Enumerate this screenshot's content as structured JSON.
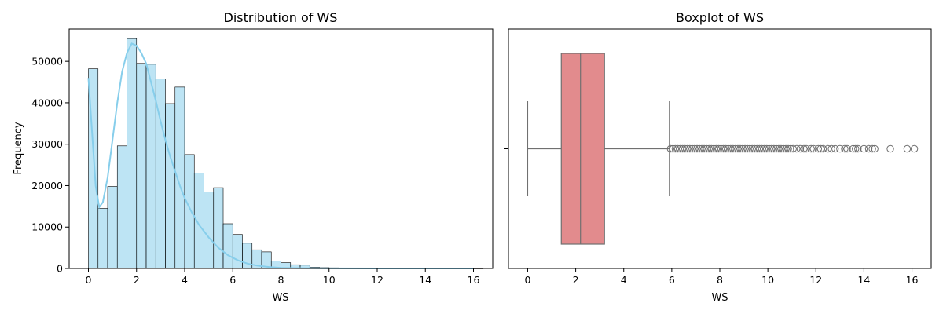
{
  "chart_data": [
    {
      "type": "histogram",
      "title": "Distribution of WS",
      "xlabel": "WS",
      "ylabel": "Frequency",
      "xlim": [
        -0.8,
        16.8
      ],
      "ylim": [
        0,
        57800
      ],
      "xticks": [
        0,
        2,
        4,
        6,
        8,
        10,
        12,
        14,
        16
      ],
      "yticks": [
        0,
        10000,
        20000,
        30000,
        40000,
        50000
      ],
      "bin_width": 0.4,
      "bin_start": 0,
      "bin_values": [
        48200,
        14500,
        19800,
        29600,
        55500,
        49500,
        49300,
        45800,
        39800,
        43800,
        27500,
        23000,
        18500,
        19500,
        10800,
        8200,
        6100,
        4500,
        4000,
        1800,
        1400,
        900,
        800,
        300,
        200,
        150,
        100,
        100,
        80,
        60,
        50,
        40,
        30,
        30,
        20,
        20,
        20,
        15,
        15,
        10,
        10
      ],
      "bar_color": "#87ceeb",
      "kde_color": "#87ceeb",
      "kde": {
        "x": [
          0,
          0.15,
          0.3,
          0.45,
          0.6,
          0.8,
          1.0,
          1.2,
          1.4,
          1.6,
          1.8,
          2.0,
          2.2,
          2.4,
          2.6,
          2.8,
          3.0,
          3.2,
          3.4,
          3.6,
          3.8,
          4.0,
          4.3,
          4.6,
          5.0,
          5.4,
          5.8,
          6.2,
          6.6,
          7.0,
          7.5,
          8.0,
          9.0,
          10,
          12,
          14,
          16
        ],
        "y": [
          46000,
          33000,
          20000,
          14800,
          16000,
          22000,
          31000,
          40000,
          47500,
          52000,
          54300,
          53800,
          52000,
          49500,
          45000,
          40500,
          35500,
          31000,
          27000,
          23500,
          20000,
          17000,
          13500,
          10500,
          7500,
          5000,
          3200,
          2000,
          1200,
          700,
          350,
          150,
          60,
          20,
          5,
          2,
          1
        ]
      }
    },
    {
      "type": "boxplot",
      "title": "Boxplot of WS",
      "xlabel": "WS",
      "xlim": [
        -0.8,
        16.8
      ],
      "xticks": [
        0,
        2,
        4,
        6,
        8,
        10,
        12,
        14,
        16
      ],
      "whisker_low": 0,
      "q1": 1.4,
      "median": 2.2,
      "q3": 3.2,
      "whisker_high": 5.9,
      "box_color": "#e28b8d",
      "line_color": "#707070",
      "outliers": [
        5.95,
        6.05,
        6.15,
        6.25,
        6.35,
        6.45,
        6.55,
        6.65,
        6.75,
        6.85,
        6.95,
        7.05,
        7.15,
        7.25,
        7.35,
        7.45,
        7.55,
        7.65,
        7.75,
        7.85,
        7.95,
        8.05,
        8.15,
        8.25,
        8.35,
        8.45,
        8.55,
        8.65,
        8.75,
        8.85,
        8.95,
        9.05,
        9.15,
        9.25,
        9.35,
        9.45,
        9.55,
        9.65,
        9.75,
        9.85,
        9.95,
        10.05,
        10.15,
        10.25,
        10.35,
        10.45,
        10.55,
        10.65,
        10.75,
        10.85,
        10.95,
        11.05,
        11.2,
        11.35,
        11.5,
        11.6,
        11.8,
        11.9,
        12.1,
        12.2,
        12.3,
        12.5,
        12.65,
        12.8,
        13.0,
        13.2,
        13.3,
        13.55,
        13.65,
        13.75,
        14.0,
        14.2,
        14.35,
        14.45,
        15.1,
        15.8,
        16.1
      ]
    }
  ]
}
